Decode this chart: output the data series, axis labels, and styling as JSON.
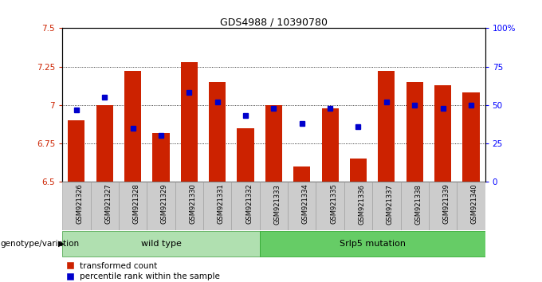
{
  "title": "GDS4988 / 10390780",
  "samples": [
    "GSM921326",
    "GSM921327",
    "GSM921328",
    "GSM921329",
    "GSM921330",
    "GSM921331",
    "GSM921332",
    "GSM921333",
    "GSM921334",
    "GSM921335",
    "GSM921336",
    "GSM921337",
    "GSM921338",
    "GSM921339",
    "GSM921340"
  ],
  "bar_values": [
    6.9,
    7.0,
    7.22,
    6.82,
    7.28,
    7.15,
    6.85,
    7.0,
    6.6,
    6.98,
    6.65,
    7.22,
    7.15,
    7.13,
    7.08
  ],
  "dot_values": [
    47,
    55,
    35,
    30,
    58,
    52,
    43,
    48,
    38,
    48,
    36,
    52,
    50,
    48,
    50
  ],
  "bar_color": "#cc2200",
  "dot_color": "#0000cc",
  "ylim_left": [
    6.5,
    7.5
  ],
  "ylim_right": [
    0,
    100
  ],
  "yticks_left": [
    6.5,
    6.75,
    7.0,
    7.25,
    7.5
  ],
  "yticks_left_labels": [
    "6.5",
    "6.75",
    "7",
    "7.25",
    "7.5"
  ],
  "yticks_right": [
    0,
    25,
    50,
    75,
    100
  ],
  "yticks_right_labels": [
    "0",
    "25",
    "50",
    "75",
    "100%"
  ],
  "hlines": [
    6.75,
    7.0,
    7.25
  ],
  "wild_type_label": "wild type",
  "srfp5_label": "Srlp5 mutation",
  "wild_type_color": "#b0e0b0",
  "srfp5_color": "#66cc66",
  "xlabel_label": "genotype/variation",
  "legend_bar_label": "transformed count",
  "legend_dot_label": "percentile rank within the sample",
  "bar_bottom": 6.5,
  "bar_width": 0.6,
  "xtick_bg": "#cccccc"
}
